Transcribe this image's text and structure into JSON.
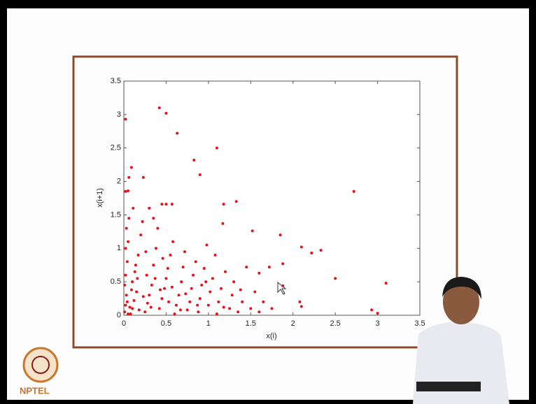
{
  "chart_data": {
    "type": "scatter",
    "xlabel": "x(i)",
    "ylabel": "x(i+1)",
    "x": [
      0.42,
      0.5,
      0.02,
      0.63,
      1.1,
      0.83,
      0.09,
      0.06,
      0.23,
      0.9,
      0.02,
      0.05,
      2.72,
      1.33,
      1.18,
      0.45,
      0.5,
      0.57,
      1.17,
      1.52,
      1.85,
      2.1,
      2.33,
      2.22,
      2.5,
      3.1,
      2.93,
      3.0,
      2.08,
      2.1,
      1.88,
      1.72,
      1.88,
      1.6,
      1.45,
      1.38,
      0.01,
      0.02,
      0.03,
      0.01,
      0.02,
      0.04,
      0.02,
      0.05,
      0.03,
      0.06,
      0.08,
      0.1,
      0.12,
      0.15,
      0.1,
      0.13,
      0.17,
      0.2,
      0.22,
      0.25,
      0.28,
      0.3,
      0.33,
      0.27,
      0.35,
      0.38,
      0.4,
      0.42,
      0.45,
      0.48,
      0.5,
      0.52,
      0.55,
      0.58,
      0.6,
      0.62,
      0.65,
      0.68,
      0.7,
      0.72,
      0.75,
      0.78,
      0.8,
      0.82,
      0.85,
      0.88,
      0.9,
      0.92,
      0.95,
      0.98,
      1.0,
      1.02,
      1.05,
      1.08,
      1.1,
      1.12,
      1.15,
      1.2,
      1.25,
      1.28,
      1.3,
      1.35,
      1.4,
      1.5,
      1.55,
      1.6,
      1.65,
      1.75,
      0.05,
      0.07,
      0.18,
      0.23,
      0.32,
      0.37,
      0.43,
      0.53,
      0.57,
      0.67,
      0.73,
      0.87,
      0.97,
      1.18,
      0.14,
      0.26,
      0.46,
      0.04,
      0.09,
      0.16,
      0.11,
      0.3,
      0.35
    ],
    "values": [
      3.1,
      3.02,
      2.93,
      2.72,
      2.5,
      2.32,
      2.21,
      2.06,
      2.06,
      2.1,
      1.85,
      1.86,
      1.85,
      1.7,
      1.66,
      1.66,
      1.66,
      1.66,
      1.37,
      1.26,
      1.2,
      1.02,
      0.97,
      0.93,
      0.55,
      0.48,
      0.08,
      0.03,
      0.2,
      0.13,
      0.44,
      0.72,
      0.77,
      0.63,
      0.72,
      0.38,
      0.05,
      0.15,
      0.3,
      0.45,
      0.6,
      0.8,
      1.0,
      1.1,
      1.3,
      1.45,
      0.02,
      0.1,
      0.22,
      0.35,
      0.5,
      0.65,
      0.9,
      1.2,
      1.4,
      0.05,
      0.18,
      0.3,
      0.45,
      0.6,
      0.75,
      1.0,
      1.3,
      0.1,
      0.25,
      0.4,
      0.55,
      0.7,
      0.9,
      1.1,
      0.02,
      0.15,
      0.3,
      0.5,
      0.72,
      0.95,
      0.08,
      0.2,
      0.4,
      0.6,
      0.8,
      0.05,
      0.25,
      0.45,
      0.7,
      1.05,
      0.15,
      0.35,
      0.55,
      0.9,
      0.02,
      0.2,
      0.4,
      0.65,
      0.1,
      0.3,
      0.5,
      0.05,
      0.2,
      0.1,
      0.35,
      0.05,
      0.2,
      0.1,
      0.02,
      0.12,
      0.08,
      0.28,
      0.12,
      0.55,
      0.38,
      0.2,
      0.42,
      0.08,
      0.32,
      0.15,
      0.5,
      0.12,
      0.75,
      0.95,
      0.85,
      0.2,
      0.38,
      0.55,
      1.6,
      1.6,
      1.45
    ],
    "color": "#e8101a",
    "xlim": [
      0,
      3.5
    ],
    "ylim": [
      0,
      3.5
    ],
    "xticks": [
      0,
      0.5,
      1,
      1.5,
      2,
      2.5,
      3,
      3.5
    ],
    "yticks": [
      0,
      0.5,
      1,
      1.5,
      2,
      2.5,
      3,
      3.5
    ],
    "grid": false
  },
  "logo_text": "NPTEL"
}
